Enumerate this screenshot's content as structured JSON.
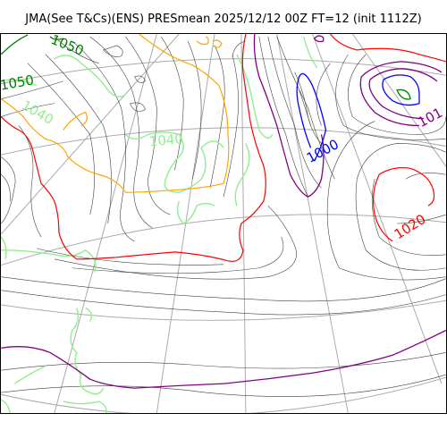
{
  "title": "JMA(See T&Cs)(ENS) PRESmean 2025/12/12 00Z FT=12 (init 1112Z)",
  "contour_labels": {
    "l1050a": "1050",
    "l1050b": "1050",
    "l1040a": "1040",
    "l1040b": "1040",
    "l1000": "1000",
    "l1020": "1020",
    "l1010": "101"
  },
  "colors": {
    "highlight_1020": "#ff0000",
    "highlight_1000": "#0000ff",
    "highlight_1010": "#800080",
    "highlight_1030": "#ffa500",
    "highlight_1040": "#90ee90",
    "highlight_1050": "#008000",
    "regular_isobar": "#404040",
    "graticule": "#aaaaaa"
  }
}
